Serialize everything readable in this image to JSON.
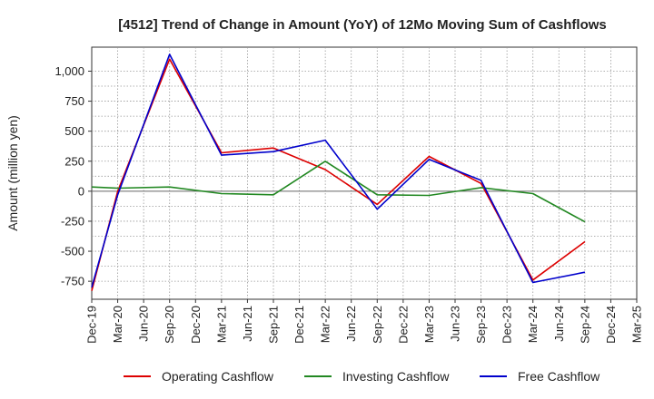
{
  "chart_data": {
    "type": "line",
    "title": "[4512]  Trend of Change in Amount (YoY) of 12Mo Moving Sum of Cashflows",
    "ylabel": "Amount (million yen)",
    "xlabel": "",
    "ylim": [
      -900,
      1200
    ],
    "yticks": [
      -750,
      -500,
      -250,
      0,
      250,
      500,
      750,
      1000
    ],
    "ytick_labels": [
      "-750",
      "-500",
      "-250",
      "0",
      "250",
      "500",
      "750",
      "1,000"
    ],
    "grid": true,
    "legend_position": "bottom-center",
    "categories": [
      "Dec-19",
      "Mar-20",
      "Jun-20",
      "Sep-20",
      "Dec-20",
      "Mar-21",
      "Jun-21",
      "Sep-21",
      "Dec-21",
      "Mar-22",
      "Jun-22",
      "Sep-22",
      "Dec-22",
      "Mar-23",
      "Jun-23",
      "Sep-23",
      "Dec-23",
      "Mar-24",
      "Jun-24",
      "Sep-24",
      "Dec-24",
      "Mar-25"
    ],
    "series": [
      {
        "name": "Operating Cashflow",
        "color": "#dd0000",
        "values": [
          -830,
          0,
          null,
          1100,
          null,
          320,
          null,
          360,
          null,
          180,
          null,
          -110,
          null,
          290,
          null,
          65,
          null,
          -740,
          null,
          -420,
          null,
          null
        ]
      },
      {
        "name": "Investing Cashflow",
        "color": "#228822",
        "values": [
          35,
          25,
          null,
          35,
          null,
          -20,
          null,
          -30,
          null,
          250,
          null,
          -30,
          null,
          -35,
          null,
          30,
          null,
          -20,
          null,
          -255,
          null,
          null
        ]
      },
      {
        "name": "Free Cashflow",
        "color": "#0000cc",
        "values": [
          -800,
          -30,
          null,
          1140,
          null,
          300,
          null,
          330,
          null,
          425,
          null,
          -150,
          null,
          265,
          null,
          90,
          null,
          -760,
          null,
          -675,
          null,
          null
        ]
      }
    ]
  }
}
